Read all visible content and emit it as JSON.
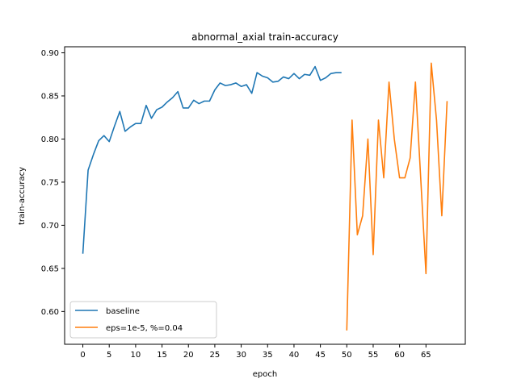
{
  "chart_data": {
    "type": "line",
    "title": "abnormal_axial train-accuracy",
    "xlabel": "epoch",
    "ylabel": "train-accuracy",
    "xlim": [
      -3.45,
      72.45
    ],
    "ylim": [
      0.562,
      0.907
    ],
    "xticks": [
      0,
      5,
      10,
      15,
      20,
      25,
      30,
      35,
      40,
      45,
      50,
      55,
      60,
      65
    ],
    "xtick_labels": [
      "0",
      "5",
      "10",
      "15",
      "20",
      "25",
      "30",
      "35",
      "40",
      "45",
      "50",
      "55",
      "60",
      "65"
    ],
    "yticks": [
      0.6,
      0.65,
      0.7,
      0.75,
      0.8,
      0.85,
      0.9
    ],
    "ytick_labels": [
      "0.60",
      "0.65",
      "0.70",
      "0.75",
      "0.80",
      "0.85",
      "0.90"
    ],
    "grid": false,
    "legend_position": "lower-left",
    "series": [
      {
        "name": "baseline",
        "color": "#1f77b4",
        "x": [
          0,
          1,
          2,
          3,
          4,
          5,
          6,
          7,
          8,
          9,
          10,
          11,
          12,
          13,
          14,
          15,
          16,
          17,
          18,
          19,
          20,
          21,
          22,
          23,
          24,
          25,
          26,
          27,
          28,
          29,
          30,
          31,
          32,
          33,
          34,
          35,
          36,
          37,
          38,
          39,
          40,
          41,
          42,
          43,
          44,
          45,
          46,
          47,
          48,
          49
        ],
        "y": [
          0.667,
          0.764,
          0.782,
          0.798,
          0.804,
          0.797,
          0.815,
          0.832,
          0.809,
          0.814,
          0.818,
          0.818,
          0.839,
          0.824,
          0.834,
          0.837,
          0.843,
          0.848,
          0.855,
          0.836,
          0.836,
          0.845,
          0.841,
          0.844,
          0.844,
          0.857,
          0.865,
          0.862,
          0.863,
          0.865,
          0.861,
          0.863,
          0.853,
          0.877,
          0.873,
          0.871,
          0.866,
          0.867,
          0.872,
          0.87,
          0.876,
          0.87,
          0.875,
          0.874,
          0.884,
          0.868,
          0.871,
          0.876,
          0.877,
          0.877
        ]
      },
      {
        "name": "eps=1e-5, %=0.04",
        "color": "#ff7f0e",
        "x": [
          50,
          51,
          52,
          53,
          54,
          55,
          56,
          57,
          58,
          59,
          60,
          61,
          62,
          63,
          64,
          65,
          66,
          67,
          68,
          69
        ],
        "y": [
          0.578,
          0.822,
          0.689,
          0.711,
          0.8,
          0.666,
          0.822,
          0.755,
          0.866,
          0.8,
          0.755,
          0.755,
          0.778,
          0.866,
          0.755,
          0.644,
          0.888,
          0.822,
          0.711,
          0.844
        ]
      }
    ]
  }
}
